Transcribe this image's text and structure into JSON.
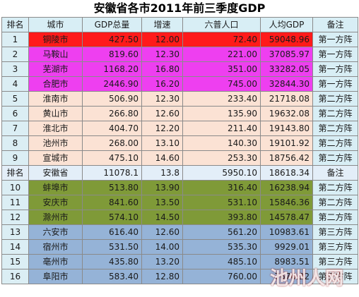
{
  "title": "安徽省各市2011年前三季度GDP",
  "headers": [
    "排名",
    "城市",
    "GDP总量",
    "增速",
    "六普人口",
    "人均GDP",
    "备注"
  ],
  "province_row": [
    "排名",
    "安徽省",
    "11078.1",
    "13.8",
    "5950.10",
    "18618.34",
    "备注"
  ],
  "rows_top": [
    [
      "1",
      "铜陵市",
      "427.50",
      "12.00",
      "72.40",
      "59048.96",
      "第一方阵"
    ],
    [
      "2",
      "马鞍山",
      "819.60",
      "12.30",
      "221.00",
      "37085.97",
      "第一方阵"
    ],
    [
      "3",
      "芜湖市",
      "1168.20",
      "16.80",
      "351.00",
      "33282.05",
      "第一方阵"
    ],
    [
      "4",
      "合肥市",
      "2446.90",
      "16.20",
      "745.00",
      "32844.30",
      "第一方阵"
    ],
    [
      "5",
      "淮南市",
      "506.90",
      "12.30",
      "233.40",
      "21718.08",
      "第二方阵"
    ],
    [
      "6",
      "黄山市",
      "266.80",
      "12.60",
      "135.90",
      "19632.08",
      "第二方阵"
    ],
    [
      "7",
      "淮北市",
      "404.70",
      "12.20",
      "211.40",
      "19143.80",
      "第二方阵"
    ],
    [
      "8",
      "池州市",
      "268.00",
      "13.10",
      "140.30",
      "19101.92",
      "第二方阵"
    ],
    [
      "9",
      "宣城市",
      "475.10",
      "14.60",
      "253.30",
      "18756.42",
      "第二方阵"
    ]
  ],
  "rows_bottom": [
    [
      "10",
      "蚌埠市",
      "513.80",
      "13.90",
      "316.40",
      "16238.94",
      "第二方阵"
    ],
    [
      "11",
      "安庆市",
      "841.60",
      "13.50",
      "531.10",
      "15846.36",
      "第二方阵"
    ],
    [
      "12",
      "滁州市",
      "574.10",
      "14.50",
      "393.80",
      "14578.47",
      "第二方阵"
    ],
    [
      "13",
      "六安市",
      "616.40",
      "12.60",
      "561.20",
      "10983.61",
      "第三方阵"
    ],
    [
      "14",
      "宿州市",
      "531.50",
      "14.00",
      "535.30",
      "9929.01",
      "第三方阵"
    ],
    [
      "15",
      "亳州市",
      "435.80",
      "13.20",
      "485.10",
      "8983.51",
      "第三方阵"
    ],
    [
      "16",
      "阜阳市",
      "583.40",
      "12.80",
      "760.00",
      "7676.32",
      "第三方阵"
    ]
  ],
  "colors": {
    "header": "#d8eef5",
    "row1": "#ff1a1a",
    "tier1": "#ee3ff0",
    "tier2": "#fbe2d4",
    "province": "#e3eef8",
    "olive": "#7f9a38",
    "blue": "#95b3d7",
    "rank_cell": "#dbeef4"
  },
  "watermark": "池州人网"
}
